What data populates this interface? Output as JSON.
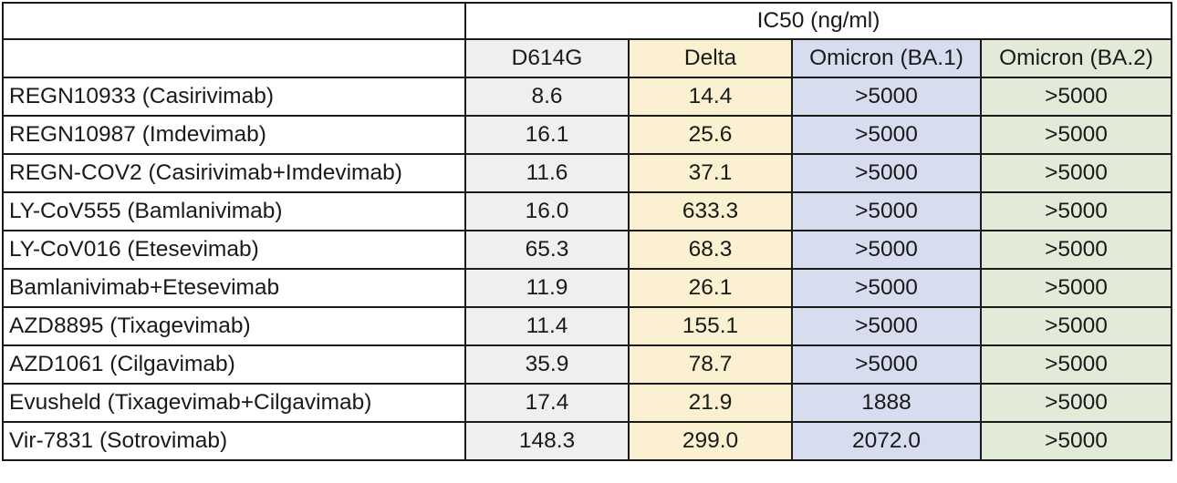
{
  "chart_data": {
    "type": "table",
    "group_header": "IC50 (ng/ml)",
    "columns": [
      "D614G",
      "Delta",
      "Omicron (BA.1)",
      "Omicron (BA.2)"
    ],
    "column_colors": [
      "#efefef",
      "#fbf0cf",
      "#d8dcef",
      "#e1ebd8"
    ],
    "rows": [
      {
        "name": "REGN10933 (Casirivimab)",
        "values": [
          "8.6",
          "14.4",
          ">5000",
          ">5000"
        ]
      },
      {
        "name": "REGN10987 (Imdevimab)",
        "values": [
          "16.1",
          "25.6",
          ">5000",
          ">5000"
        ]
      },
      {
        "name": "REGN-COV2 (Casirivimab+Imdevimab)",
        "values": [
          "11.6",
          "37.1",
          ">5000",
          ">5000"
        ]
      },
      {
        "name": "LY-CoV555 (Bamlanivimab)",
        "values": [
          "16.0",
          "633.3",
          ">5000",
          ">5000"
        ]
      },
      {
        "name": "LY-CoV016 (Etesevimab)",
        "values": [
          "65.3",
          "68.3",
          ">5000",
          ">5000"
        ]
      },
      {
        "name": "Bamlanivimab+Etesevimab",
        "values": [
          "11.9",
          "26.1",
          ">5000",
          ">5000"
        ]
      },
      {
        "name": "AZD8895 (Tixagevimab)",
        "values": [
          "11.4",
          "155.1",
          ">5000",
          ">5000"
        ]
      },
      {
        "name": "AZD1061 (Cilgavimab)",
        "values": [
          "35.9",
          "78.7",
          ">5000",
          ">5000"
        ]
      },
      {
        "name": "Evusheld (Tixagevimab+Cilgavimab)",
        "values": [
          "17.4",
          "21.9",
          "1888",
          ">5000"
        ]
      },
      {
        "name": "Vir-7831 (Sotrovimab)",
        "values": [
          "148.3",
          "299.0",
          "2072.0",
          ">5000"
        ]
      }
    ]
  }
}
